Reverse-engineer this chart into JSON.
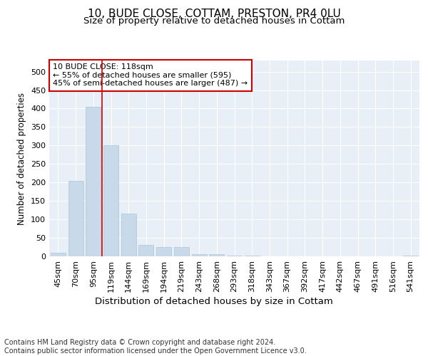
{
  "title": "10, BUDE CLOSE, COTTAM, PRESTON, PR4 0LU",
  "subtitle": "Size of property relative to detached houses in Cottam",
  "xlabel": "Distribution of detached houses by size in Cottam",
  "ylabel": "Number of detached properties",
  "bar_color": "#c8d9ea",
  "bar_edge_color": "#adc4d8",
  "categories": [
    "45sqm",
    "70sqm",
    "95sqm",
    "119sqm",
    "144sqm",
    "169sqm",
    "194sqm",
    "219sqm",
    "243sqm",
    "268sqm",
    "293sqm",
    "318sqm",
    "343sqm",
    "367sqm",
    "392sqm",
    "417sqm",
    "442sqm",
    "467sqm",
    "491sqm",
    "516sqm",
    "541sqm"
  ],
  "values": [
    10,
    205,
    405,
    300,
    115,
    30,
    25,
    25,
    5,
    5,
    1,
    1,
    0,
    0,
    0,
    0,
    0,
    0,
    0,
    0,
    1
  ],
  "ylim": [
    0,
    530
  ],
  "yticks": [
    0,
    50,
    100,
    150,
    200,
    250,
    300,
    350,
    400,
    450,
    500
  ],
  "property_line_x": 3.0,
  "property_line_color": "#cc0000",
  "annotation_text": "10 BUDE CLOSE: 118sqm\n← 55% of detached houses are smaller (595)\n45% of semi-detached houses are larger (487) →",
  "annotation_box_facecolor": "#ffffff",
  "annotation_box_edgecolor": "#cc0000",
  "footer_text": "Contains HM Land Registry data © Crown copyright and database right 2024.\nContains public sector information licensed under the Open Government Licence v3.0.",
  "axes_background": "#e8eff6",
  "grid_color": "#ffffff",
  "title_fontsize": 11,
  "subtitle_fontsize": 9.5,
  "ylabel_fontsize": 8.5,
  "xlabel_fontsize": 9.5,
  "tick_fontsize": 8,
  "annotation_fontsize": 8,
  "footer_fontsize": 7
}
